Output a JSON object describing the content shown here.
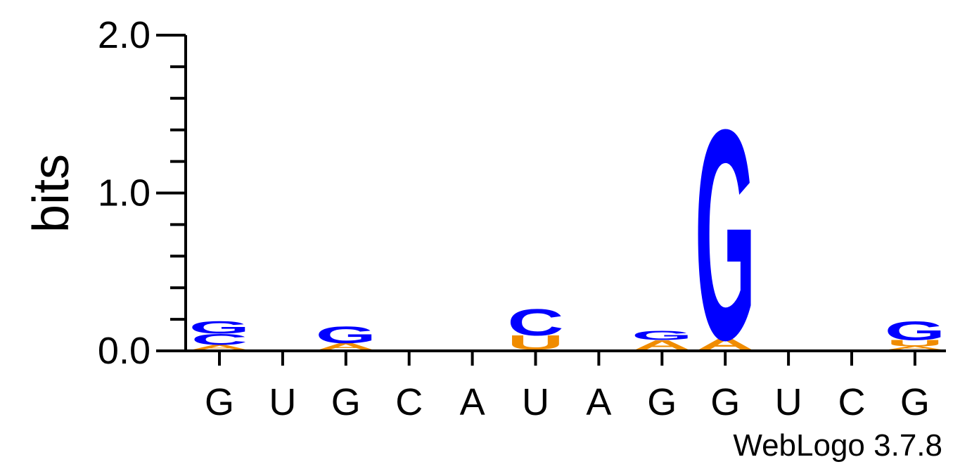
{
  "chart_data": {
    "type": "sequence-logo",
    "ylabel": "bits",
    "ylim": [
      0,
      2.0
    ],
    "y_tick_labels": [
      "0.0",
      "1.0",
      "2.0"
    ],
    "y_ticks": [
      0.0,
      1.0,
      2.0
    ],
    "positions": [
      "G",
      "U",
      "G",
      "C",
      "A",
      "U",
      "A",
      "G",
      "G",
      "U",
      "C",
      "G"
    ],
    "colors": {
      "A": "#f08c00",
      "U": "#f08c00",
      "C": "#0000ff",
      "G": "#0000ff"
    },
    "stacks": [
      [
        {
          "letter": "A",
          "bits": 0.03
        },
        {
          "letter": "C",
          "bits": 0.07
        },
        {
          "letter": "G",
          "bits": 0.08
        }
      ],
      [],
      [
        {
          "letter": "A",
          "bits": 0.04
        },
        {
          "letter": "G",
          "bits": 0.11
        }
      ],
      [],
      [],
      [
        {
          "letter": "U",
          "bits": 0.09
        },
        {
          "letter": "C",
          "bits": 0.17
        }
      ],
      [],
      [
        {
          "letter": "A",
          "bits": 0.06
        },
        {
          "letter": "G",
          "bits": 0.06
        }
      ],
      [
        {
          "letter": "A",
          "bits": 0.07
        },
        {
          "letter": "G",
          "bits": 1.36
        }
      ],
      [],
      [],
      [
        {
          "letter": "A",
          "bits": 0.02
        },
        {
          "letter": "U",
          "bits": 0.04
        },
        {
          "letter": "G",
          "bits": 0.12
        }
      ]
    ]
  },
  "footer": "WebLogo 3.7.8"
}
